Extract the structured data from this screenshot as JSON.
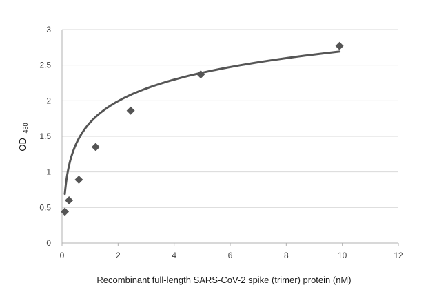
{
  "chart_data": {
    "type": "scatter",
    "title": "",
    "xlabel": "Recombinant full-length SARS-CoV-2 spike (trimer) protein (nM)",
    "ylabel": "OD",
    "ylabel_subscript": "450",
    "xlim": [
      0,
      12
    ],
    "ylim": [
      0,
      3
    ],
    "x_ticks": [
      0,
      2,
      4,
      6,
      8,
      10,
      12
    ],
    "y_ticks": [
      0,
      0.5,
      1,
      1.5,
      2,
      2.5,
      3
    ],
    "grid": "horizontal",
    "legend": "none",
    "marker": "diamond",
    "colors": {
      "marker": "#555555",
      "line": "#555555",
      "grid": "#d9d9d9",
      "axis": "#b0b0b0"
    },
    "series": [
      {
        "points": [
          {
            "x": 0.1,
            "y": 0.44
          },
          {
            "x": 0.25,
            "y": 0.6
          },
          {
            "x": 0.6,
            "y": 0.89
          },
          {
            "x": 1.2,
            "y": 1.35
          },
          {
            "x": 2.45,
            "y": 1.86
          },
          {
            "x": 4.95,
            "y": 2.37
          },
          {
            "x": 9.9,
            "y": 2.77
          }
        ]
      }
    ],
    "trendline": {
      "type": "logarithmic",
      "a": 0.4354,
      "b": 1.6932,
      "x_range": [
        0.1,
        9.9
      ]
    }
  }
}
